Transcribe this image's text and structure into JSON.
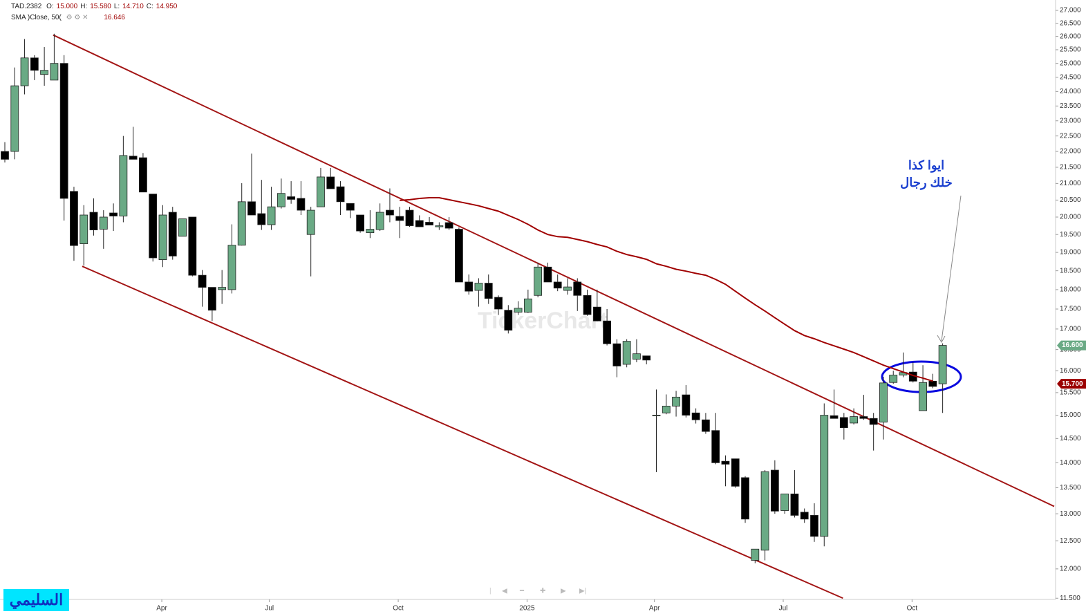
{
  "chart_data": {
    "type": "candlestick",
    "symbol": "TAD.2382",
    "readout": [
      {
        "key": "O:",
        "text": "15.000"
      },
      {
        "key": "H:",
        "text": "15.580"
      },
      {
        "key": "L:",
        "text": "14.710"
      },
      {
        "key": "C:",
        "text": "14.950"
      }
    ],
    "indicator": {
      "name": "SMA )Close, 50(",
      "text": "16.646"
    },
    "watermark": "TickerChart",
    "author": "السليمي",
    "annotation": [
      "ايوا كذا",
      "خلك رجال"
    ],
    "up_color": "#6aaa85",
    "down_color": "#000000",
    "log_scale": true,
    "xlim": [
      -0.49,
      106.44
    ],
    "xticks": [
      {
        "value": 15.9,
        "label": "Apr"
      },
      {
        "value": 26.8,
        "label": "Jul"
      },
      {
        "value": 39.85,
        "label": "Oct"
      },
      {
        "value": 52.9,
        "label": "2025"
      },
      {
        "value": 65.8,
        "label": "Apr"
      },
      {
        "value": 78.85,
        "label": "Jul"
      },
      {
        "value": 91.9,
        "label": "Oct"
      }
    ],
    "ylim": [
      11.48,
      27.41
    ],
    "yticks": [
      {
        "value": 11.5,
        "label": "11.500"
      },
      {
        "value": 12,
        "label": "12.000"
      },
      {
        "value": 12.5,
        "label": "12.500"
      },
      {
        "value": 13,
        "label": "13.000"
      },
      {
        "value": 13.5,
        "label": "13.500"
      },
      {
        "value": 14,
        "label": "14.000"
      },
      {
        "value": 14.5,
        "label": "14.500"
      },
      {
        "value": 15,
        "label": "15.000"
      },
      {
        "value": 15.5,
        "label": "15.500"
      },
      {
        "value": 16,
        "label": "16.000"
      },
      {
        "value": 16.5,
        "label": "16.500"
      },
      {
        "value": 17,
        "label": "17.000"
      },
      {
        "value": 17.5,
        "label": "17.500"
      },
      {
        "value": 18,
        "label": "18.000"
      },
      {
        "value": 18.5,
        "label": "18.500"
      },
      {
        "value": 19,
        "label": "19.000"
      },
      {
        "value": 19.5,
        "label": "19.500"
      },
      {
        "value": 20,
        "label": "20.000"
      },
      {
        "value": 20.5,
        "label": "20.500"
      },
      {
        "value": 21,
        "label": "21.000"
      },
      {
        "value": 21.5,
        "label": "21.500"
      },
      {
        "value": 22,
        "label": "22.000"
      },
      {
        "value": 22.5,
        "label": "22.500"
      },
      {
        "value": 23,
        "label": "23.000"
      },
      {
        "value": 23.5,
        "label": "23.500"
      },
      {
        "value": 24,
        "label": "24.000"
      },
      {
        "value": 24.5,
        "label": "24.500"
      },
      {
        "value": 25,
        "label": "25.000"
      },
      {
        "value": 25.5,
        "label": "25.500"
      },
      {
        "value": 26,
        "label": "26.000"
      },
      {
        "value": 26.5,
        "label": "26.500"
      },
      {
        "value": 27,
        "label": "27.000"
      }
    ],
    "open": [
      22.0,
      22.0,
      24.2,
      25.2,
      24.6,
      24.4,
      25.0,
      20.76,
      19.24,
      20.14,
      19.65,
      20.12,
      20.03,
      21.85,
      21.8,
      20.68,
      18.8,
      20.14,
      19.45,
      20.0,
      18.38,
      18.06,
      18.0,
      18.0,
      19.2,
      20.45,
      20.1,
      19.78,
      20.3,
      20.6,
      20.55,
      19.5,
      20.3,
      21.2,
      20.9,
      20.4,
      20.06,
      19.55,
      19.64,
      20.2,
      20.02,
      20.2,
      19.9,
      19.85,
      19.72,
      19.84,
      19.65,
      18.2,
      17.98,
      18.17,
      17.8,
      17.47,
      17.42,
      17.42,
      17.85,
      18.6,
      18.2,
      17.98,
      18.2,
      17.85,
      17.55,
      17.2,
      16.64,
      16.15,
      16.27,
      16.35,
      14.99,
      15.05,
      15.2,
      15.45,
      15.05,
      14.9,
      14.67,
      14.03,
      14.08,
      13.7,
      12.15,
      12.33,
      13.85,
      13.06,
      13.38,
      13.03,
      12.97,
      12.58,
      14.99,
      14.95,
      14.83,
      14.97,
      14.93,
      14.85,
      15.73,
      15.9,
      15.97,
      15.1,
      15.76,
      15.7
    ],
    "high": [
      22.3,
      24.85,
      25.9,
      25.3,
      25.6,
      26.1,
      25.3,
      20.9,
      20.35,
      20.55,
      20.2,
      20.4,
      22.5,
      22.8,
      21.95,
      20.68,
      20.35,
      20.3,
      19.95,
      20.0,
      18.52,
      18.06,
      18.52,
      19.79,
      21.01,
      21.93,
      21.11,
      20.9,
      21.15,
      21.07,
      21.07,
      20.3,
      21.48,
      21.48,
      21.07,
      20.4,
      20.06,
      20.2,
      20.4,
      20.85,
      20.3,
      20.3,
      20.05,
      20.0,
      19.85,
      20.0,
      19.7,
      18.4,
      18.3,
      18.4,
      17.85,
      17.6,
      17.7,
      18.0,
      18.72,
      18.72,
      18.4,
      18.3,
      18.3,
      18.0,
      18.0,
      17.5,
      16.75,
      16.75,
      16.75,
      16.35,
      15.57,
      15.46,
      15.54,
      15.67,
      15.15,
      15.05,
      15.05,
      14.15,
      14.08,
      13.73,
      12.35,
      13.85,
      14.05,
      13.38,
      13.85,
      13.1,
      13.2,
      15.26,
      15.57,
      15.05,
      15.15,
      15.45,
      15.05,
      15.86,
      16.0,
      16.43,
      16.2,
      16.13,
      15.93,
      16.65
    ],
    "low": [
      21.65,
      21.75,
      23.9,
      24.4,
      24.2,
      24.4,
      19.9,
      18.77,
      18.64,
      19.47,
      19.1,
      19.6,
      19.85,
      21.75,
      20.74,
      18.75,
      18.6,
      18.8,
      19.45,
      18.35,
      17.56,
      17.2,
      17.63,
      17.9,
      19.19,
      20.06,
      19.63,
      19.63,
      20.25,
      20.39,
      20.06,
      18.35,
      20.3,
      20.84,
      20.06,
      19.97,
      19.55,
      19.4,
      19.6,
      19.85,
      19.4,
      19.72,
      19.72,
      19.77,
      19.63,
      19.63,
      18.2,
      17.87,
      17.56,
      17.63,
      17.35,
      16.89,
      17.35,
      17.4,
      17.8,
      18.2,
      17.96,
      17.87,
      17.45,
      17.33,
      17.19,
      16.6,
      15.85,
      16.08,
      16.2,
      16.15,
      13.81,
      15.02,
      14.97,
      14.95,
      14.82,
      14.6,
      13.97,
      13.53,
      13.5,
      12.83,
      12.1,
      12.15,
      13.0,
      13.0,
      12.93,
      12.83,
      12.48,
      12.4,
      14.93,
      14.48,
      14.8,
      14.9,
      14.25,
      14.48,
      15.7,
      15.85,
      15.73,
      15.1,
      15.6,
      15.05
    ],
    "close": [
      21.75,
      24.2,
      25.2,
      24.75,
      24.75,
      25.0,
      20.55,
      19.19,
      20.06,
      19.63,
      20.0,
      20.03,
      21.87,
      21.75,
      20.74,
      18.85,
      20.06,
      18.9,
      19.95,
      18.38,
      18.06,
      17.47,
      18.06,
      19.2,
      20.45,
      20.06,
      19.78,
      20.3,
      20.7,
      20.52,
      20.2,
      20.2,
      21.2,
      20.84,
      20.45,
      20.2,
      19.6,
      19.65,
      20.14,
      20.06,
      19.9,
      19.75,
      19.72,
      19.77,
      19.75,
      19.68,
      18.2,
      17.96,
      18.17,
      17.77,
      17.5,
      16.97,
      17.52,
      17.76,
      18.6,
      18.2,
      18.04,
      18.07,
      17.85,
      17.36,
      17.2,
      16.64,
      16.11,
      16.7,
      16.4,
      16.25,
      15.0,
      15.2,
      15.4,
      15.0,
      14.9,
      14.65,
      14.0,
      13.97,
      13.53,
      12.9,
      12.35,
      13.82,
      13.05,
      13.38,
      12.97,
      12.9,
      12.58,
      15.0,
      14.93,
      14.73,
      14.97,
      14.93,
      14.8,
      15.72,
      15.9,
      15.96,
      15.76,
      15.73,
      15.64,
      16.6
    ],
    "sma": {
      "color": "#a00000",
      "values": [
        null,
        null,
        null,
        null,
        null,
        null,
        null,
        null,
        null,
        null,
        null,
        null,
        null,
        null,
        null,
        null,
        null,
        null,
        null,
        null,
        null,
        null,
        null,
        null,
        null,
        null,
        null,
        null,
        null,
        null,
        null,
        null,
        null,
        null,
        null,
        null,
        null,
        null,
        null,
        null,
        20.49,
        20.51,
        20.55,
        20.57,
        20.57,
        20.51,
        20.45,
        20.39,
        20.33,
        20.25,
        20.17,
        20.05,
        19.93,
        19.79,
        19.63,
        19.5,
        19.44,
        19.42,
        19.36,
        19.3,
        19.22,
        19.15,
        19.03,
        18.94,
        18.88,
        18.81,
        18.69,
        18.62,
        18.54,
        18.49,
        18.43,
        18.38,
        18.27,
        18.14,
        17.96,
        17.78,
        17.61,
        17.45,
        17.28,
        17.12,
        16.96,
        16.84,
        16.76,
        16.67,
        16.59,
        16.51,
        16.43,
        16.33,
        16.23,
        16.13,
        16.05,
        15.97,
        15.89,
        15.83,
        15.76,
        null
      ]
    },
    "trendlines": [
      {
        "x0": 4.9,
        "y0": 26.05,
        "x1": 106.3,
        "y1": 13.14
      },
      {
        "x0": 7.84,
        "y0": 18.62,
        "x1": 84.9,
        "y1": 11.5
      }
    ],
    "trendline_color": "#a31515",
    "price_tags": [
      {
        "value": 16.6,
        "label": "16.600",
        "color": "#6aaa85"
      },
      {
        "value": 15.7,
        "label": "15.700",
        "color": "#9b0000"
      }
    ]
  }
}
